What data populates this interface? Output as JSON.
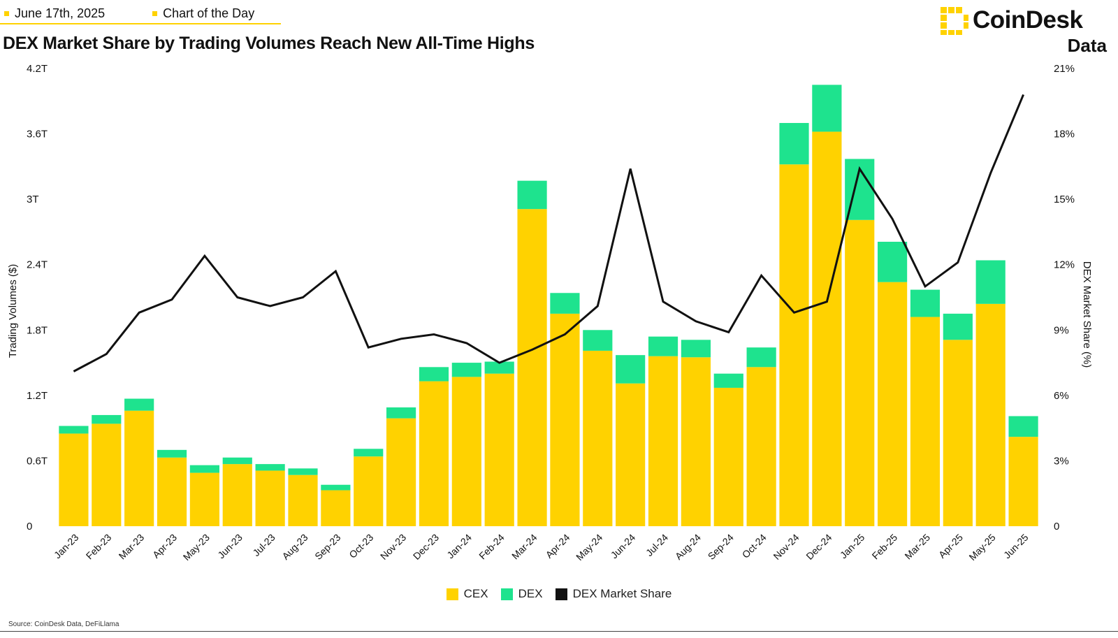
{
  "header": {
    "date": "June 17th, 2025",
    "series_tag": "Chart of the Day",
    "accent_color": "#FFD200"
  },
  "logo": {
    "brand": "CoinDesk",
    "sub": "Data"
  },
  "source": "Source: CoinDesk Data, DeFiLlama",
  "chart_data": {
    "type": "bar",
    "stacked": true,
    "title": "DEX Market Share by Trading Volumes Reach New All-Time Highs",
    "ylabel": "Trading Volumes ($)",
    "y2label": "DEX Market Share (%)",
    "ylim": [
      0,
      4.2
    ],
    "y2lim": [
      0,
      21
    ],
    "yticks": [
      "0",
      "0.6T",
      "1.2T",
      "1.8T",
      "2.4T",
      "3T",
      "3.6T",
      "4.2T"
    ],
    "y2ticks": [
      "0",
      "3%",
      "6%",
      "9%",
      "12%",
      "15%",
      "18%",
      "21%"
    ],
    "categories": [
      "Jan-23",
      "Feb-23",
      "Mar-23",
      "Apr-23",
      "May-23",
      "Jun-23",
      "Jul-23",
      "Aug-23",
      "Sep-23",
      "Oct-23",
      "Nov-23",
      "Dec-23",
      "Jan-24",
      "Feb-24",
      "Mar-24",
      "Apr-24",
      "May-24",
      "Jun-24",
      "Jul-24",
      "Aug-24",
      "Sep-24",
      "Oct-24",
      "Nov-24",
      "Dec-24",
      "Jan-25",
      "Feb-25",
      "Mar-25",
      "Apr-25",
      "May-25",
      "Jun-25"
    ],
    "series": [
      {
        "name": "CEX",
        "color": "#FFD200",
        "values": [
          0.85,
          0.94,
          1.06,
          0.63,
          0.49,
          0.57,
          0.51,
          0.47,
          0.33,
          0.64,
          0.99,
          1.33,
          1.37,
          1.4,
          2.91,
          1.95,
          1.61,
          1.31,
          1.56,
          1.55,
          1.27,
          1.46,
          3.32,
          3.62,
          2.81,
          2.24,
          1.92,
          1.71,
          2.04,
          0.82
        ]
      },
      {
        "name": "DEX",
        "color": "#1EE38E",
        "values": [
          0.07,
          0.08,
          0.11,
          0.07,
          0.07,
          0.06,
          0.06,
          0.06,
          0.05,
          0.07,
          0.1,
          0.13,
          0.13,
          0.11,
          0.26,
          0.19,
          0.19,
          0.26,
          0.18,
          0.16,
          0.13,
          0.18,
          0.38,
          0.43,
          0.56,
          0.37,
          0.25,
          0.24,
          0.4,
          0.19
        ]
      }
    ],
    "line_series": {
      "name": "DEX Market Share",
      "color": "#111111",
      "axis": "right",
      "values": [
        7.1,
        7.9,
        9.8,
        10.4,
        12.4,
        10.5,
        10.1,
        10.5,
        11.7,
        8.2,
        8.6,
        8.8,
        8.4,
        7.5,
        8.1,
        8.8,
        10.1,
        16.4,
        10.3,
        9.4,
        8.9,
        11.5,
        9.8,
        10.3,
        16.4,
        14.1,
        11.0,
        12.1,
        16.2,
        19.8
      ]
    },
    "grid": false,
    "legend": "bottom-center"
  }
}
